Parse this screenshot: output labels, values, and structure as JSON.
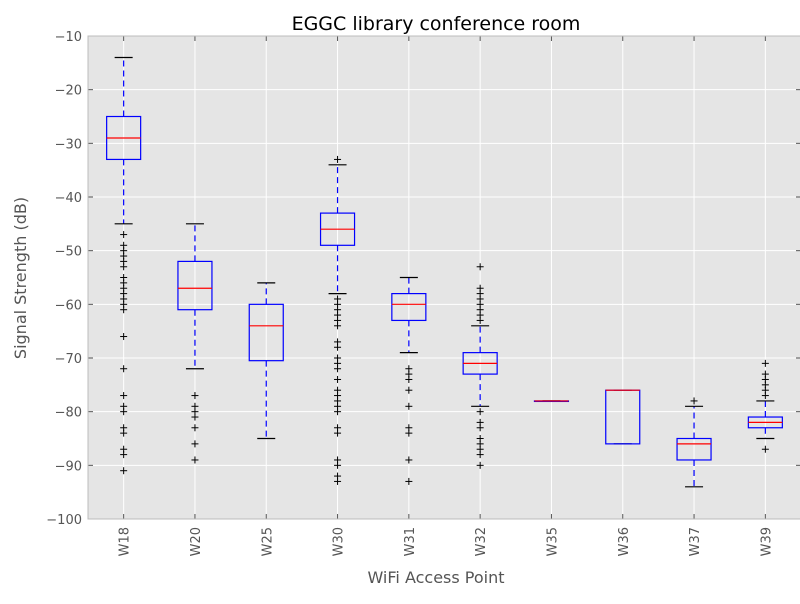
{
  "chart_data": {
    "type": "box",
    "title": "EGGC library conference room",
    "xlabel": "WiFi Access Point",
    "ylabel": "Signal Strength (dB)",
    "ylim": [
      -100,
      -10
    ],
    "yticks": [
      -10,
      -20,
      -30,
      -40,
      -50,
      -60,
      -70,
      -80,
      -90,
      -100
    ],
    "ytick_labels": [
      "−10",
      "−20",
      "−30",
      "−40",
      "−50",
      "−60",
      "−70",
      "−80",
      "−90",
      "−100"
    ],
    "grid": true,
    "background": "#e5e5e5",
    "colors": {
      "box": "#0000ff",
      "median": "#ff0000",
      "whisker": "#0000ff",
      "cap": "#000000",
      "flier": "#000000",
      "grid": "#ffffff"
    },
    "categories": [
      "W18",
      "W20",
      "W25",
      "W30",
      "W31",
      "W32",
      "W35",
      "W36",
      "W37",
      "W39"
    ],
    "boxes": [
      {
        "label": "W18",
        "q1": -33,
        "median": -29,
        "q3": -25,
        "whislo": -45,
        "whishi": -14,
        "fliers": [
          -47,
          -49,
          -50,
          -51,
          -52,
          -53,
          -55,
          -56,
          -57,
          -58,
          -59,
          -60,
          -61,
          -66,
          -72,
          -77,
          -79,
          -80,
          -83,
          -84,
          -87,
          -88,
          -91
        ]
      },
      {
        "label": "W20",
        "q1": -61,
        "median": -57,
        "q3": -52,
        "whislo": -72,
        "whishi": -45,
        "fliers": [
          -77,
          -79,
          -80,
          -81,
          -83,
          -86,
          -89
        ]
      },
      {
        "label": "W25",
        "q1": -70.5,
        "median": -64,
        "q3": -60,
        "whislo": -85,
        "whishi": -56,
        "fliers": []
      },
      {
        "label": "W30",
        "q1": -49,
        "median": -46,
        "q3": -43,
        "whislo": -58,
        "whishi": -34,
        "fliers": [
          -33,
          -59,
          -60,
          -61,
          -62,
          -63,
          -64,
          -67,
          -68,
          -70,
          -71,
          -72,
          -74,
          -76,
          -77,
          -78,
          -79,
          -80,
          -83,
          -84,
          -89,
          -90,
          -92,
          -93
        ]
      },
      {
        "label": "W31",
        "q1": -63,
        "median": -60,
        "q3": -58,
        "whislo": -69,
        "whishi": -55,
        "fliers": [
          -72,
          -73,
          -74,
          -76,
          -79,
          -83,
          -84,
          -89,
          -93
        ]
      },
      {
        "label": "W32",
        "q1": -73,
        "median": -71,
        "q3": -69,
        "whislo": -79,
        "whishi": -64,
        "fliers": [
          -53,
          -57,
          -58,
          -59,
          -60,
          -61,
          -62,
          -63,
          -80,
          -82,
          -83,
          -85,
          -86,
          -87,
          -88,
          -90
        ]
      },
      {
        "label": "W35",
        "q1": -78,
        "median": -78,
        "q3": -78,
        "whislo": -78,
        "whishi": -78,
        "fliers": []
      },
      {
        "label": "W36",
        "q1": -86,
        "median": -76,
        "q3": -76,
        "whislo": -86,
        "whishi": -76,
        "fliers": []
      },
      {
        "label": "W37",
        "q1": -89,
        "median": -86,
        "q3": -85,
        "whislo": -94,
        "whishi": -79,
        "fliers": [
          -78
        ]
      },
      {
        "label": "W39",
        "q1": -83,
        "median": -82,
        "q3": -81,
        "whislo": -85,
        "whishi": -78,
        "fliers": [
          -71,
          -73,
          -74,
          -75,
          -76,
          -77,
          -87
        ]
      }
    ]
  }
}
